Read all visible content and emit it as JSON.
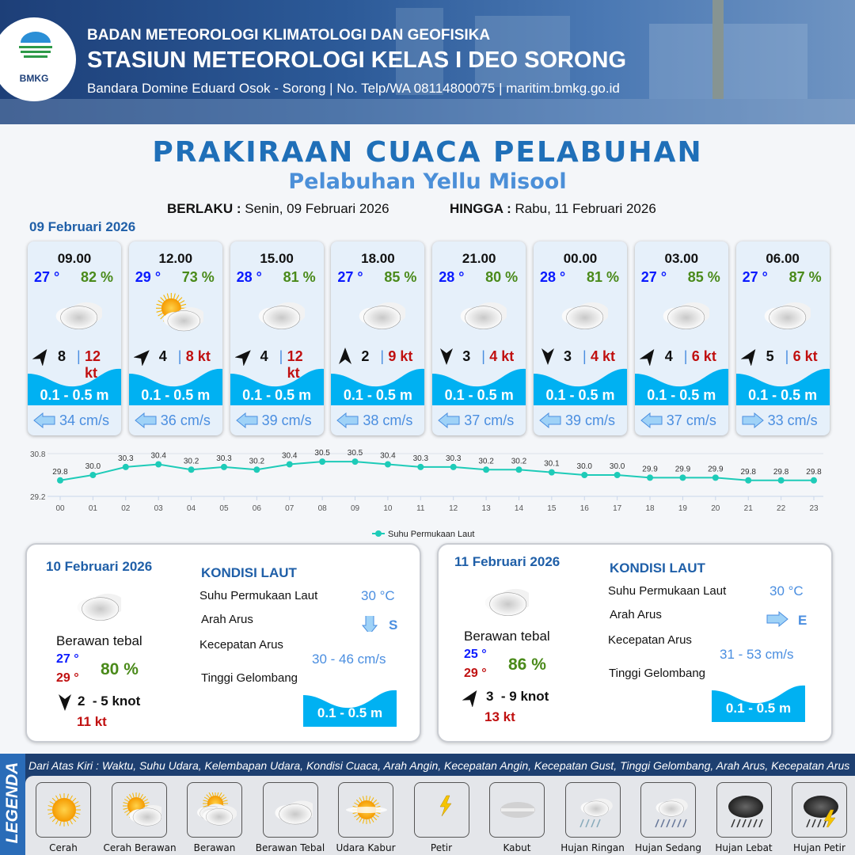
{
  "header": {
    "logo_text": "BMKG",
    "agency": "BADAN METEOROLOGI KLIMATOLOGI DAN GEOFISIKA",
    "station": "STASIUN METEOROLOGI KELAS I DEO SORONG",
    "contact": "Bandara Domine Eduard Osok - Sorong | No. Telp/WA 08114800075 | maritim.bmkg.go.id"
  },
  "title": "PRAKIRAAN CUACA PELABUHAN",
  "subtitle": "Pelabuhan Yellu Misool",
  "validity": {
    "from_label": "BERLAKU :",
    "from_value": "Senin, 09 Februari 2026",
    "to_label": "HINGGA :",
    "to_value": "Rabu, 11 Februari 2026"
  },
  "day1_date": "09 Februari 2026",
  "forecasts": [
    {
      "time": "09.00",
      "temp": "27 °",
      "hum": "82 %",
      "weather": "berawan-tebal",
      "wind_dir_deg": 35,
      "wind": "8",
      "gust": "12 kt",
      "wave": "0.1 - 0.5 m",
      "current_dir": "left",
      "current": "34 cm/s"
    },
    {
      "time": "12.00",
      "temp": "29 °",
      "hum": "73 %",
      "weather": "cerah-berawan",
      "wind_dir_deg": 45,
      "wind": "4",
      "gust": "8 kt",
      "wave": "0.1 - 0.5 m",
      "current_dir": "left",
      "current": "36 cm/s"
    },
    {
      "time": "15.00",
      "temp": "28 °",
      "hum": "81 %",
      "weather": "berawan-tebal",
      "wind_dir_deg": 45,
      "wind": "4",
      "gust": "12 kt",
      "wave": "0.1 - 0.5 m",
      "current_dir": "left",
      "current": "39 cm/s"
    },
    {
      "time": "18.00",
      "temp": "27 °",
      "hum": "85 %",
      "weather": "berawan-tebal",
      "wind_dir_deg": 0,
      "wind": "2",
      "gust": "9 kt",
      "wave": "0.1 - 0.5 m",
      "current_dir": "left",
      "current": "38 cm/s"
    },
    {
      "time": "21.00",
      "temp": "28 °",
      "hum": "80 %",
      "weather": "berawan-tebal",
      "wind_dir_deg": 180,
      "wind": "3",
      "gust": "4 kt",
      "wave": "0.1 - 0.5 m",
      "current_dir": "left",
      "current": "37 cm/s"
    },
    {
      "time": "00.00",
      "temp": "28 °",
      "hum": "81 %",
      "weather": "berawan-tebal",
      "wind_dir_deg": 180,
      "wind": "3",
      "gust": "4 kt",
      "wave": "0.1 - 0.5 m",
      "current_dir": "left",
      "current": "39 cm/s"
    },
    {
      "time": "03.00",
      "temp": "27 °",
      "hum": "85 %",
      "weather": "berawan-tebal",
      "wind_dir_deg": 35,
      "wind": "4",
      "gust": "6 kt",
      "wave": "0.1 - 0.5 m",
      "current_dir": "left",
      "current": "37 cm/s"
    },
    {
      "time": "06.00",
      "temp": "27 °",
      "hum": "87 %",
      "weather": "berawan-tebal",
      "wind_dir_deg": 35,
      "wind": "5",
      "gust": "6 kt",
      "wave": "0.1 - 0.5 m",
      "current_dir": "right",
      "current": "33 cm/s"
    }
  ],
  "chart_data": {
    "type": "line",
    "x": [
      "00",
      "01",
      "02",
      "03",
      "04",
      "05",
      "06",
      "07",
      "08",
      "09",
      "10",
      "11",
      "12",
      "13",
      "14",
      "15",
      "16",
      "17",
      "18",
      "19",
      "20",
      "21",
      "22",
      "23"
    ],
    "series": [
      {
        "name": "Suhu Permukaan Laut",
        "values": [
          29.8,
          30.0,
          30.3,
          30.4,
          30.2,
          30.3,
          30.2,
          30.4,
          30.5,
          30.5,
          30.4,
          30.3,
          30.3,
          30.2,
          30.2,
          30.1,
          30.0,
          30.0,
          29.9,
          29.9,
          29.9,
          29.8,
          29.8,
          29.8
        ],
        "color": "#1ecbb8"
      }
    ],
    "yticks": [
      "30.8",
      "29.2"
    ],
    "ylim": [
      29.2,
      30.8
    ],
    "legend": "bottom-right"
  },
  "days": [
    {
      "date": "10 Februari 2026",
      "weather": "berawan-tebal",
      "weather_label": "Berawan tebal",
      "tmin": "27 °",
      "tmax": "29 °",
      "hum": "80 %",
      "wind_dir_deg": 180,
      "wind": "2  - 5 knot",
      "gust": "11 kt",
      "kondisi": "KONDISI LAUT",
      "sst_label": "Suhu Permukaan Laut",
      "sst": "30 °C",
      "arus_label": "Arah Arus",
      "arus_dir": "down",
      "arus": "S",
      "kec_label": "Kecepatan Arus",
      "kec": "30 - 46 cm/s",
      "gel_label": "Tinggi Gelombang",
      "gel": "0.1 - 0.5 m"
    },
    {
      "date": "11 Februari 2026",
      "weather": "berawan-tebal",
      "weather_label": "Berawan tebal",
      "tmin": "25 °",
      "tmax": "29 °",
      "hum": "86 %",
      "wind_dir_deg": 35,
      "wind": "3  - 9 knot",
      "gust": "13 kt",
      "kondisi": "KONDISI LAUT",
      "sst_label": "Suhu Permukaan Laut",
      "sst": "30 °C",
      "arus_label": "Arah Arus",
      "arus_dir": "right",
      "arus": "E",
      "kec_label": "Kecepatan Arus",
      "kec": "31 - 53 cm/s",
      "gel_label": "Tinggi Gelombang",
      "gel": "0.1 - 0.5 m"
    }
  ],
  "legend": {
    "title": "LEGENDA",
    "note": "Dari Atas Kiri : Waktu, Suhu Udara, Kelembapan Udara, Kondisi Cuaca, Arah Angin, Kecepatan Angin, Kecepatan Gust, Tinggi Gelombang, Arah Arus, Kecepatan Arus",
    "items": [
      {
        "icon": "cerah",
        "label": "Cerah"
      },
      {
        "icon": "cerah-berawan",
        "label": "Cerah Berawan"
      },
      {
        "icon": "berawan",
        "label": "Berawan"
      },
      {
        "icon": "berawan-tebal",
        "label": "Berawan Tebal"
      },
      {
        "icon": "udara-kabur",
        "label": "Udara Kabur"
      },
      {
        "icon": "petir",
        "label": "Petir"
      },
      {
        "icon": "kabut",
        "label": "Kabut"
      },
      {
        "icon": "hujan-ringan",
        "label": "Hujan Ringan"
      },
      {
        "icon": "hujan-sedang",
        "label": "Hujan Sedang"
      },
      {
        "icon": "hujan-lebat",
        "label": "Hujan Lebat"
      },
      {
        "icon": "hujan-petir",
        "label": "Hujan Petir"
      }
    ]
  }
}
